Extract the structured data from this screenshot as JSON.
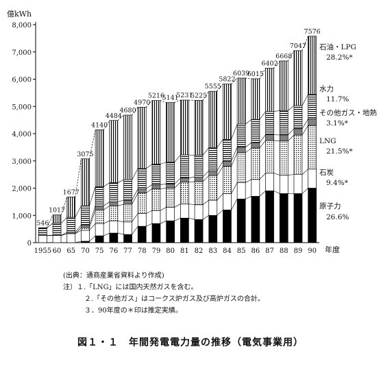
{
  "chart_data": {
    "type": "bar",
    "stacked": true,
    "ylabel": "億kWh",
    "xlabel": "年度",
    "ylim": [
      0,
      8000
    ],
    "yticks": [
      "0",
      "1,000",
      "2,000",
      "3,000",
      "4,000",
      "5,000",
      "6,000",
      "7,000",
      "8,000"
    ],
    "categories": [
      "1955",
      "60",
      "65",
      "70",
      "75",
      "76",
      "77",
      "78",
      "79",
      "80",
      "81",
      "82",
      "83",
      "84",
      "85",
      "86",
      "87",
      "88",
      "89",
      "90"
    ],
    "totals": [
      546,
      1017,
      1677,
      3075,
      4140,
      4484,
      4680,
      4970,
      5216,
      5141,
      5231,
      5225,
      5555,
      5822,
      6039,
      6015,
      6402,
      6668,
      7047,
      7576
    ],
    "total_labels": [
      "546",
      "1017",
      "1677",
      "3075",
      "4140",
      "4484",
      "4680",
      "4970",
      "5216",
      "5141",
      "5231",
      "5225",
      "5555",
      "5822",
      "6039",
      "6015",
      "6402",
      "6668",
      "7047",
      "7576"
    ],
    "series": [
      {
        "name": "原子力",
        "share": "26.6%",
        "values": [
          0,
          0,
          0,
          50,
          250,
          350,
          300,
          600,
          700,
          800,
          900,
          850,
          1000,
          1200,
          1600,
          1700,
          1900,
          1800,
          1800,
          2000
        ]
      },
      {
        "name": "石炭",
        "share": "9.4%*",
        "values": [
          270,
          260,
          330,
          400,
          450,
          450,
          460,
          470,
          480,
          500,
          520,
          540,
          560,
          600,
          600,
          620,
          650,
          680,
          700,
          700
        ]
      },
      {
        "name": "LNG",
        "share": "21.5%*",
        "values": [
          0,
          0,
          0,
          100,
          500,
          550,
          650,
          750,
          800,
          700,
          800,
          850,
          900,
          1000,
          1100,
          1150,
          1200,
          1250,
          1450,
          1600
        ]
      },
      {
        "name": "その他ガス・地熱",
        "share": "3.1%*",
        "values": [
          0,
          0,
          50,
          100,
          150,
          150,
          150,
          150,
          150,
          150,
          150,
          170,
          180,
          190,
          200,
          200,
          210,
          220,
          230,
          240
        ]
      },
      {
        "name": "水力",
        "share": "11.7%",
        "values": [
          270,
          450,
          550,
          700,
          700,
          700,
          750,
          750,
          750,
          800,
          850,
          800,
          850,
          800,
          850,
          850,
          850,
          900,
          850,
          900
        ]
      },
      {
        "name": "石油・LPG",
        "share": "28.2%*",
        "values": [
          6,
          307,
          747,
          1725,
          2090,
          2284,
          2370,
          2250,
          2336,
          2191,
          2011,
          2015,
          2065,
          2032,
          1689,
          1495,
          1592,
          1818,
          2017,
          2136
        ]
      }
    ],
    "grid": false,
    "legend": "right, inline labels"
  },
  "notes": {
    "source": "(出典：通商産業省資料より作成)",
    "note1": "注）１.「LNG」には国内天然ガスを含む。",
    "note2": "２.「その他ガス」はコークス炉ガス及び高炉ガスの合計。",
    "note3": "３．90年度の＊印は推定実績。"
  },
  "caption": "図１・１　年間発電電力量の推移（電気事業用）"
}
